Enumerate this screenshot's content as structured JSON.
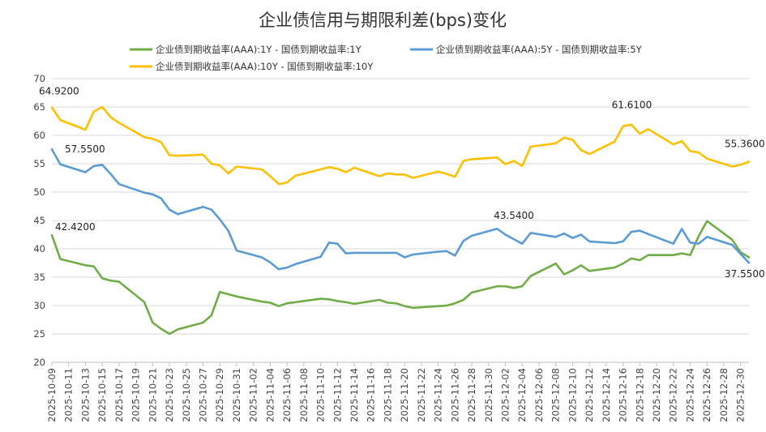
{
  "chart_data": {
    "type": "line",
    "title": "企业债信用与期限利差(bps)变化",
    "xlabel": "",
    "ylabel": "",
    "ylim": [
      20,
      70
    ],
    "yticks": [
      20,
      25,
      30,
      35,
      40,
      45,
      50,
      55,
      60,
      65,
      70
    ],
    "grid": true,
    "legend_position": "top",
    "x": [
      "2025-10-09",
      "2025-10-10",
      "2025-10-13",
      "2025-10-14",
      "2025-10-15",
      "2025-10-16",
      "2025-10-17",
      "2025-10-20",
      "2025-10-21",
      "2025-10-22",
      "2025-10-23",
      "2025-10-24",
      "2025-10-27",
      "2025-10-28",
      "2025-10-29",
      "2025-10-30",
      "2025-10-31",
      "2025-11-03",
      "2025-11-04",
      "2025-11-05",
      "2025-11-06",
      "2025-11-07",
      "2025-11-10",
      "2025-11-11",
      "2025-11-12",
      "2025-11-13",
      "2025-11-14",
      "2025-11-17",
      "2025-11-18",
      "2025-11-19",
      "2025-11-20",
      "2025-11-21",
      "2025-11-24",
      "2025-11-25",
      "2025-11-26",
      "2025-11-27",
      "2025-11-28",
      "2025-12-01",
      "2025-12-02",
      "2025-12-03",
      "2025-12-04",
      "2025-12-05",
      "2025-12-08",
      "2025-12-09",
      "2025-12-10",
      "2025-12-11",
      "2025-12-12",
      "2025-12-15",
      "2025-12-16",
      "2025-12-17",
      "2025-12-18",
      "2025-12-19",
      "2025-12-22",
      "2025-12-23",
      "2025-12-24",
      "2025-12-25",
      "2025-12-26",
      "2025-12-29",
      "2025-12-30",
      "2025-12-31"
    ],
    "xtick_labels": [
      "2025-10-09",
      "2025-10-11",
      "2025-10-13",
      "2025-10-15",
      "2025-10-17",
      "2025-10-19",
      "2025-10-21",
      "2025-10-23",
      "2025-10-25",
      "2025-10-27",
      "2025-10-29",
      "2025-10-31",
      "2025-11-02",
      "2025-11-04",
      "2025-11-06",
      "2025-11-08",
      "2025-11-10",
      "2025-11-12",
      "2025-11-14",
      "2025-11-16",
      "2025-11-18",
      "2025-11-20",
      "2025-11-22",
      "2025-11-24",
      "2025-11-26",
      "2025-11-28",
      "2025-11-30",
      "2025-12-02",
      "2025-12-04",
      "2025-12-06",
      "2025-12-08",
      "2025-12-10",
      "2025-12-12",
      "2025-12-14",
      "2025-12-16",
      "2025-12-18",
      "2025-12-20",
      "2025-12-22",
      "2025-12-24",
      "2025-12-26",
      "2025-12-28",
      "2025-12-30"
    ],
    "series": [
      {
        "name": "企业债到期收益率(AAA):1Y - 国债到期收益率:1Y",
        "color": "#70ad47",
        "values": [
          42.42,
          38.2,
          37.1,
          36.9,
          34.8,
          34.4,
          34.2,
          30.6,
          27.0,
          25.9,
          25.0,
          25.8,
          27.0,
          28.3,
          32.4,
          32.0,
          31.6,
          30.7,
          30.5,
          29.9,
          30.4,
          30.6,
          31.2,
          31.1,
          30.8,
          30.6,
          30.3,
          31.0,
          30.5,
          30.4,
          29.9,
          29.6,
          29.9,
          30.0,
          30.4,
          31.0,
          32.3,
          33.4,
          33.4,
          33.1,
          33.4,
          35.2,
          37.4,
          35.5,
          36.2,
          37.1,
          36.1,
          36.7,
          37.4,
          38.3,
          38.0,
          38.9,
          38.9,
          39.2,
          38.9,
          42.2,
          44.9,
          41.6,
          39.4,
          38.5
        ],
        "labels": [
          {
            "index": 0,
            "text": "42.4200"
          }
        ]
      },
      {
        "name": "企业债到期收益率(AAA):5Y - 国债到期收益率:5Y",
        "color": "#5b9bd5",
        "values": [
          57.55,
          54.9,
          53.5,
          54.6,
          54.8,
          53.2,
          51.4,
          49.9,
          49.6,
          48.9,
          46.9,
          46.1,
          47.4,
          46.9,
          45.2,
          43.2,
          39.7,
          38.5,
          37.6,
          36.4,
          36.7,
          37.3,
          38.6,
          41.1,
          40.9,
          39.2,
          39.3,
          39.3,
          39.3,
          39.3,
          38.5,
          39.0,
          39.5,
          39.6,
          38.8,
          41.4,
          42.3,
          43.54,
          42.5,
          41.7,
          40.9,
          42.8,
          42.1,
          42.7,
          41.9,
          42.5,
          41.3,
          41.0,
          41.3,
          43.0,
          43.2,
          42.6,
          40.9,
          43.5,
          41.1,
          40.9,
          42.1,
          40.7,
          39.1,
          37.55
        ],
        "labels": [
          {
            "index": 0,
            "text": "57.5500"
          },
          {
            "index": 37,
            "text": "43.5400"
          },
          {
            "index": 59,
            "text": "37.5500"
          }
        ]
      },
      {
        "name": "企业债到期收益率(AAA):10Y - 国债到期收益率:10Y",
        "color": "#ffc000",
        "values": [
          64.92,
          62.7,
          61.0,
          64.2,
          65.0,
          63.2,
          62.2,
          59.7,
          59.4,
          58.8,
          56.5,
          56.4,
          56.6,
          55.0,
          54.7,
          53.3,
          54.5,
          54.0,
          52.8,
          51.4,
          51.7,
          52.9,
          54.0,
          54.4,
          54.1,
          53.5,
          54.3,
          52.8,
          53.3,
          53.1,
          53.1,
          52.5,
          53.6,
          53.2,
          52.7,
          55.5,
          55.8,
          56.1,
          54.9,
          55.5,
          54.6,
          58.0,
          58.6,
          59.6,
          59.2,
          57.4,
          56.7,
          58.9,
          61.61,
          61.9,
          60.3,
          61.1,
          58.4,
          59.0,
          57.2,
          57.0,
          55.9,
          54.5,
          54.8,
          55.36
        ],
        "labels": [
          {
            "index": 0,
            "text": "64.9200"
          },
          {
            "index": 48,
            "text": "61.6100"
          },
          {
            "index": 59,
            "text": "55.3600"
          }
        ]
      }
    ]
  }
}
